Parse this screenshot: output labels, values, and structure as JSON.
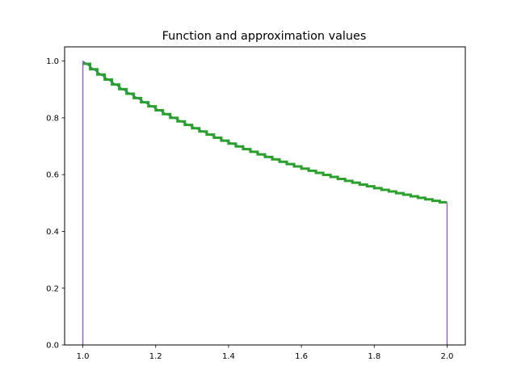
{
  "chart_data": {
    "type": "line",
    "title": "Function and approximation values",
    "xlabel": "",
    "ylabel": "",
    "xlim": [
      0.95,
      2.05
    ],
    "ylim": [
      0.0,
      1.05
    ],
    "grid": false,
    "legend": null,
    "xticks": [
      1.0,
      1.2,
      1.4,
      1.6,
      1.8,
      2.0
    ],
    "xtick_labels": [
      "1.0",
      "1.2",
      "1.4",
      "1.6",
      "1.8",
      "2.0"
    ],
    "yticks": [
      0.0,
      0.2,
      0.4,
      0.6,
      0.8,
      1.0
    ],
    "ytick_labels": [
      "0.0",
      "0.2",
      "0.4",
      "0.6",
      "0.8",
      "1.0"
    ],
    "function": "1/x",
    "x_range": [
      1.0,
      2.0
    ],
    "series": [
      {
        "name": "function",
        "style": "line",
        "color": "#1f77b4",
        "desc": "f(x)=1/x, from (1.0,1.0) to (2.0,0.5)"
      },
      {
        "name": "approximation-1",
        "style": "step",
        "color": "#ff7f0e",
        "steps": 50
      },
      {
        "name": "approximation-2",
        "style": "step",
        "color": "#2ca02c",
        "steps": 50
      },
      {
        "name": "left-boundary",
        "style": "vline",
        "color": "#9467bd",
        "x": 1.0,
        "y_from": 0.0,
        "y_to": 1.0
      },
      {
        "name": "right-boundary",
        "style": "vline",
        "color": "#9467bd",
        "x": 2.0,
        "y_from": 0.0,
        "y_to": 0.5
      }
    ]
  }
}
